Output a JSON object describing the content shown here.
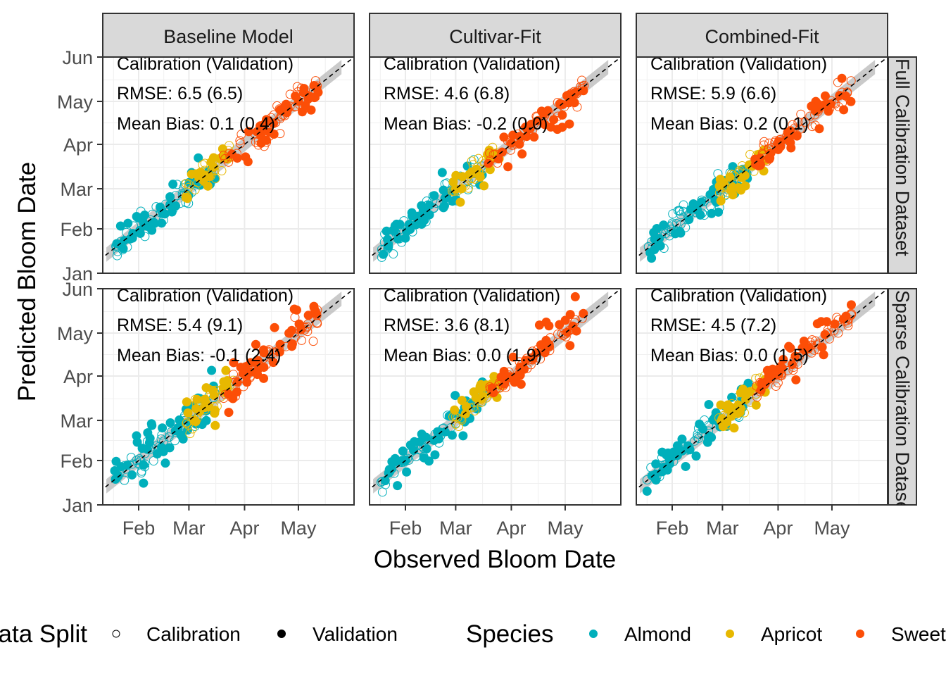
{
  "chart_data": {
    "type": "scatter",
    "title": "",
    "xlabel": "Observed Bloom Date",
    "ylabel": "Predicted Bloom Date",
    "x_ticks": [
      "Feb",
      "Mar",
      "Apr",
      "May"
    ],
    "y_ticks": [
      "Jan",
      "Feb",
      "Mar",
      "Apr",
      "May",
      "Jun"
    ],
    "x_tick_days": [
      32,
      60,
      91,
      121
    ],
    "y_tick_days": [
      1,
      32,
      60,
      91,
      121,
      152
    ],
    "xlim_days": [
      12,
      152
    ],
    "ylim_days": [
      1,
      152
    ],
    "grid": true,
    "reference_line": "1:1 dashed",
    "columns": [
      "Baseline Model",
      "Cultivar-Fit",
      "Combined-Fit"
    ],
    "rows": [
      "Full Calibration Dataset",
      "Sparse Calibration Dataset"
    ],
    "panels": [
      {
        "row": 0,
        "col": 0,
        "header": "Calibration (Validation)",
        "rmse_label": "RMSE: 6.5 (6.5)",
        "bias_label": "Mean Bias:  0.1 (0.4)",
        "rmse_cal": 6.5,
        "rmse_val": 6.5,
        "bias_cal": 0.1,
        "bias_val": 0.4,
        "seed": 11,
        "spread": 6.5
      },
      {
        "row": 0,
        "col": 1,
        "header": "Calibration (Validation)",
        "rmse_label": "RMSE: 4.6 (6.8)",
        "bias_label": "Mean Bias: -0.2 (0.0)",
        "rmse_cal": 4.6,
        "rmse_val": 6.8,
        "bias_cal": -0.2,
        "bias_val": 0.0,
        "seed": 23,
        "spread": 5.5
      },
      {
        "row": 0,
        "col": 2,
        "header": "Calibration (Validation)",
        "rmse_label": "RMSE: 5.9 (6.6)",
        "bias_label": "Mean Bias:  0.2 (0.1)",
        "rmse_cal": 5.9,
        "rmse_val": 6.6,
        "bias_cal": 0.2,
        "bias_val": 0.1,
        "seed": 37,
        "spread": 6.0
      },
      {
        "row": 1,
        "col": 0,
        "header": "Calibration (Validation)",
        "rmse_label": "RMSE: 5.4 (9.1)",
        "bias_label": "Mean Bias: -0.1 (2.4)",
        "rmse_cal": 5.4,
        "rmse_val": 9.1,
        "bias_cal": -0.1,
        "bias_val": 2.4,
        "seed": 41,
        "spread": 8.0
      },
      {
        "row": 1,
        "col": 1,
        "header": "Calibration (Validation)",
        "rmse_label": "RMSE: 3.6 (8.1)",
        "bias_label": "Mean Bias:  0.0 (1.9)",
        "rmse_cal": 3.6,
        "rmse_val": 8.1,
        "bias_cal": 0.0,
        "bias_val": 1.9,
        "seed": 53,
        "spread": 7.5
      },
      {
        "row": 1,
        "col": 2,
        "header": "Calibration (Validation)",
        "rmse_label": "RMSE: 4.5 (7.2)",
        "bias_label": "Mean Bias:  0.0 (1.5)",
        "rmse_cal": 4.5,
        "rmse_val": 7.2,
        "bias_cal": 0.0,
        "bias_val": 1.5,
        "seed": 67,
        "spread": 7.0
      }
    ],
    "species": [
      {
        "name": "Almond",
        "color": "#00AFBB",
        "observed_range_days": [
          18,
          75
        ]
      },
      {
        "name": "Apricot",
        "color": "#E7B800",
        "observed_range_days": [
          58,
          85
        ]
      },
      {
        "name": "Sweet cherry",
        "color": "#FC4E07",
        "observed_range_days": [
          78,
          132
        ]
      }
    ],
    "legend": {
      "position": "bottom",
      "data_split_title": "Data Split",
      "data_split_items": [
        "Calibration",
        "Validation"
      ],
      "species_title": "Species",
      "species_items": [
        "Almond",
        "Apricot",
        "Sweet cherry"
      ]
    }
  }
}
